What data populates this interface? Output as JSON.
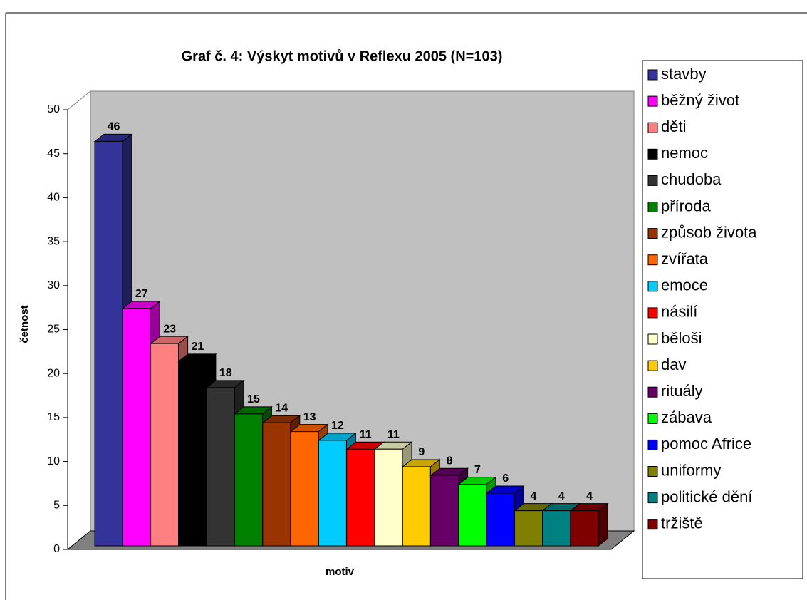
{
  "chart_data": {
    "type": "bar3d",
    "title": "Graf č. 4: Výskyt motivů v Reflexu 2005 (N=103)",
    "x_label": "motiv",
    "y_label": "četnost",
    "series": [
      {
        "name": "stavby",
        "color": "#333399",
        "values": [
          46
        ]
      },
      {
        "name": "běžný život",
        "color": "#ff00ff",
        "values": [
          27
        ]
      },
      {
        "name": "děti",
        "color": "#ff8080",
        "values": [
          23
        ]
      },
      {
        "name": "nemoc",
        "color": "#000000",
        "values": [
          21
        ]
      },
      {
        "name": "chudoba",
        "color": "#333333",
        "values": [
          18
        ]
      },
      {
        "name": "příroda",
        "color": "#008000",
        "values": [
          15
        ]
      },
      {
        "name": "způsob života",
        "color": "#993300",
        "values": [
          14
        ]
      },
      {
        "name": "zvířata",
        "color": "#ff6600",
        "values": [
          13
        ]
      },
      {
        "name": "emoce",
        "color": "#00ccff",
        "values": [
          12
        ]
      },
      {
        "name": "násilí",
        "color": "#ff0000",
        "values": [
          11
        ]
      },
      {
        "name": "běloši",
        "color": "#ffffcc",
        "values": [
          11
        ]
      },
      {
        "name": "dav",
        "color": "#ffcc00",
        "values": [
          9
        ]
      },
      {
        "name": "rituály",
        "color": "#660066",
        "values": [
          8
        ]
      },
      {
        "name": "zábava",
        "color": "#00ff00",
        "values": [
          7
        ]
      },
      {
        "name": "pomoc Africe",
        "color": "#0000ff",
        "values": [
          6
        ]
      },
      {
        "name": "uniformy",
        "color": "#808000",
        "values": [
          4
        ]
      },
      {
        "name": "politické dění",
        "color": "#008080",
        "values": [
          4
        ]
      },
      {
        "name": "tržiště",
        "color": "#800000",
        "values": [
          4
        ]
      }
    ],
    "ylim": [
      0,
      50
    ],
    "yticks": [
      0,
      5,
      10,
      15,
      20,
      25,
      30,
      35,
      40,
      45,
      50
    ],
    "grid": false,
    "legend": "right"
  }
}
